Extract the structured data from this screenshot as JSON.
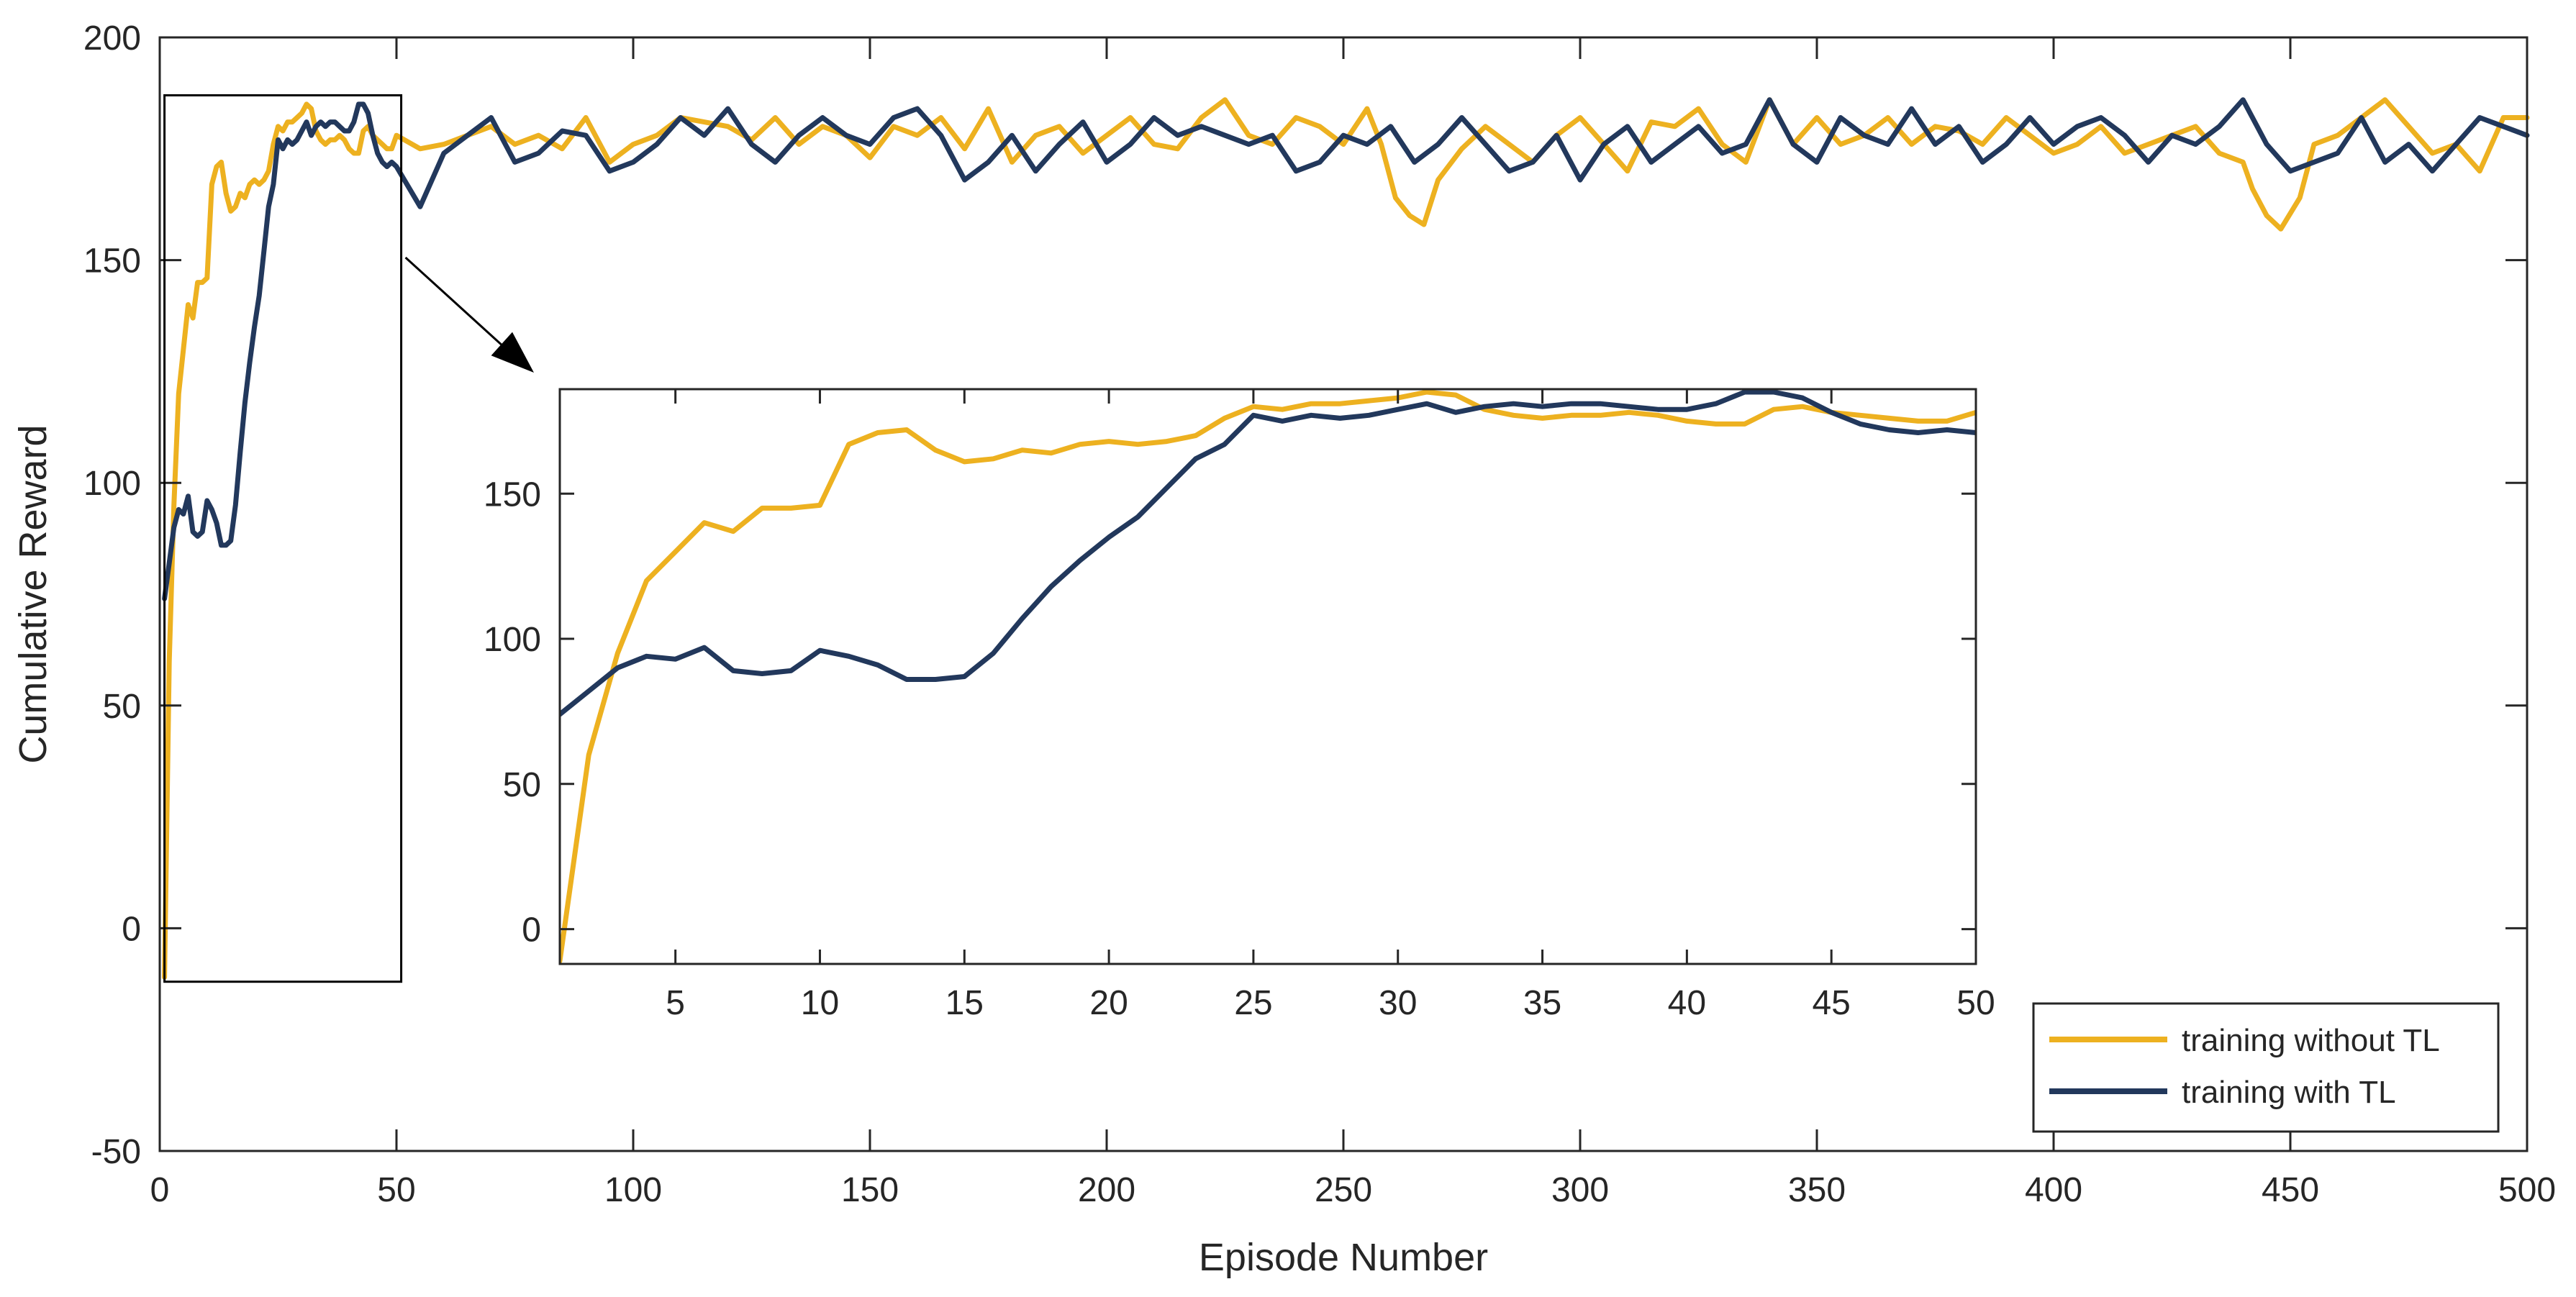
{
  "chart_data": {
    "type": "line",
    "title": "",
    "xlabel": "Episode Number",
    "ylabel": "Cumulative Reward",
    "xlim": [
      0,
      500
    ],
    "ylim": [
      -50,
      200
    ],
    "xticks": [
      "0",
      "50",
      "100",
      "150",
      "200",
      "250",
      "300",
      "350",
      "400",
      "450",
      "500"
    ],
    "yticks": [
      "-50",
      "0",
      "50",
      "100",
      "150",
      "200"
    ],
    "grid": false,
    "legend_position": "bottom-right",
    "colors": {
      "without_tl": "#EDB120",
      "with_tl": "#22385C",
      "axis": "#262626",
      "background": "#ffffff"
    },
    "series": [
      {
        "name": "training without TL",
        "color": "#EDB120",
        "x": [
          1,
          2,
          3,
          4,
          5,
          6,
          7,
          8,
          9,
          10,
          11,
          12,
          13,
          14,
          15,
          16,
          17,
          18,
          19,
          20,
          21,
          22,
          23,
          24,
          25,
          26,
          27,
          28,
          29,
          30,
          31,
          32,
          33,
          34,
          35,
          36,
          37,
          38,
          39,
          40,
          41,
          42,
          43,
          44,
          45,
          46,
          47,
          48,
          49,
          50,
          55,
          60,
          65,
          70,
          75,
          80,
          85,
          90,
          95,
          100,
          105,
          110,
          115,
          120,
          125,
          130,
          135,
          140,
          145,
          150,
          155,
          160,
          165,
          170,
          175,
          180,
          185,
          190,
          195,
          200,
          205,
          210,
          215,
          220,
          225,
          230,
          235,
          240,
          245,
          250,
          255,
          258,
          261,
          264,
          267,
          270,
          275,
          280,
          285,
          290,
          295,
          300,
          305,
          310,
          315,
          320,
          325,
          330,
          335,
          340,
          345,
          350,
          355,
          360,
          365,
          370,
          375,
          380,
          385,
          390,
          395,
          400,
          405,
          410,
          415,
          420,
          425,
          430,
          435,
          440,
          442,
          445,
          448,
          452,
          455,
          460,
          465,
          470,
          475,
          480,
          485,
          490,
          495,
          500
        ],
        "values": [
          -11,
          60,
          95,
          120,
          130,
          140,
          137,
          145,
          145,
          146,
          167,
          171,
          172,
          165,
          161,
          162,
          165,
          164,
          167,
          168,
          167,
          168,
          170,
          176,
          180,
          179,
          181,
          181,
          182,
          183,
          185,
          184,
          179,
          177,
          176,
          177,
          177,
          178,
          177,
          175,
          174,
          174,
          179,
          180,
          178,
          177,
          176,
          175,
          175,
          178,
          175,
          176,
          178,
          180,
          176,
          178,
          175,
          182,
          172,
          176,
          178,
          182,
          181,
          180,
          177,
          182,
          176,
          180,
          178,
          173,
          180,
          178,
          182,
          175,
          184,
          172,
          178,
          180,
          174,
          178,
          182,
          176,
          175,
          182,
          186,
          178,
          176,
          182,
          180,
          176,
          184,
          176,
          164,
          160,
          158,
          168,
          175,
          180,
          176,
          172,
          178,
          182,
          176,
          170,
          181,
          180,
          184,
          176,
          172,
          186,
          176,
          182,
          176,
          178,
          182,
          176,
          180,
          179,
          176,
          182,
          178,
          174,
          176,
          180,
          174,
          176,
          178,
          180,
          174,
          172,
          166,
          160,
          157,
          164,
          176,
          178,
          182,
          186,
          180,
          174,
          176,
          170,
          182,
          182
        ]
      },
      {
        "name": "training with TL",
        "color": "#22385C",
        "x": [
          1,
          2,
          3,
          4,
          5,
          6,
          7,
          8,
          9,
          10,
          11,
          12,
          13,
          14,
          15,
          16,
          17,
          18,
          19,
          20,
          21,
          22,
          23,
          24,
          25,
          26,
          27,
          28,
          29,
          30,
          31,
          32,
          33,
          34,
          35,
          36,
          37,
          38,
          39,
          40,
          41,
          42,
          43,
          44,
          45,
          46,
          47,
          48,
          49,
          50,
          55,
          60,
          65,
          70,
          75,
          80,
          85,
          90,
          95,
          100,
          105,
          110,
          115,
          120,
          125,
          130,
          135,
          140,
          145,
          150,
          155,
          160,
          165,
          170,
          175,
          180,
          185,
          190,
          195,
          200,
          205,
          210,
          215,
          220,
          225,
          230,
          235,
          240,
          245,
          250,
          255,
          260,
          265,
          270,
          275,
          280,
          285,
          290,
          295,
          300,
          305,
          310,
          315,
          320,
          325,
          330,
          335,
          340,
          345,
          350,
          355,
          360,
          365,
          370,
          375,
          380,
          385,
          390,
          395,
          400,
          405,
          410,
          415,
          420,
          425,
          430,
          435,
          440,
          445,
          450,
          455,
          460,
          465,
          470,
          475,
          480,
          485,
          490,
          495,
          500
        ],
        "values": [
          74,
          82,
          90,
          94,
          93,
          97,
          89,
          88,
          89,
          96,
          94,
          91,
          86,
          86,
          87,
          95,
          107,
          118,
          127,
          135,
          142,
          152,
          162,
          167,
          177,
          175,
          177,
          176,
          177,
          179,
          181,
          178,
          180,
          181,
          180,
          181,
          181,
          180,
          179,
          179,
          181,
          185,
          185,
          183,
          178,
          174,
          172,
          171,
          172,
          171,
          162,
          174,
          178,
          182,
          172,
          174,
          179,
          178,
          170,
          172,
          176,
          182,
          178,
          184,
          176,
          172,
          178,
          182,
          178,
          176,
          182,
          184,
          178,
          168,
          172,
          178,
          170,
          176,
          181,
          172,
          176,
          182,
          178,
          180,
          178,
          176,
          178,
          170,
          172,
          178,
          176,
          180,
          172,
          176,
          182,
          176,
          170,
          172,
          178,
          168,
          176,
          180,
          172,
          176,
          180,
          174,
          176,
          186,
          176,
          172,
          182,
          178,
          176,
          184,
          176,
          180,
          172,
          176,
          182,
          176,
          180,
          182,
          178,
          172,
          178,
          176,
          180,
          186,
          176,
          170,
          172,
          174,
          182,
          172,
          176,
          170,
          176,
          182,
          180,
          178
        ]
      }
    ],
    "inset": {
      "xlim": [
        1,
        50
      ],
      "ylim": [
        -12,
        186
      ],
      "xticks": [
        "5",
        "10",
        "15",
        "20",
        "25",
        "30",
        "35",
        "40",
        "45",
        "50"
      ],
      "yticks": [
        "0",
        "50",
        "100",
        "150"
      ],
      "zoom_region_x": [
        1,
        51
      ],
      "zoom_region_y": [
        -12,
        187
      ]
    }
  }
}
